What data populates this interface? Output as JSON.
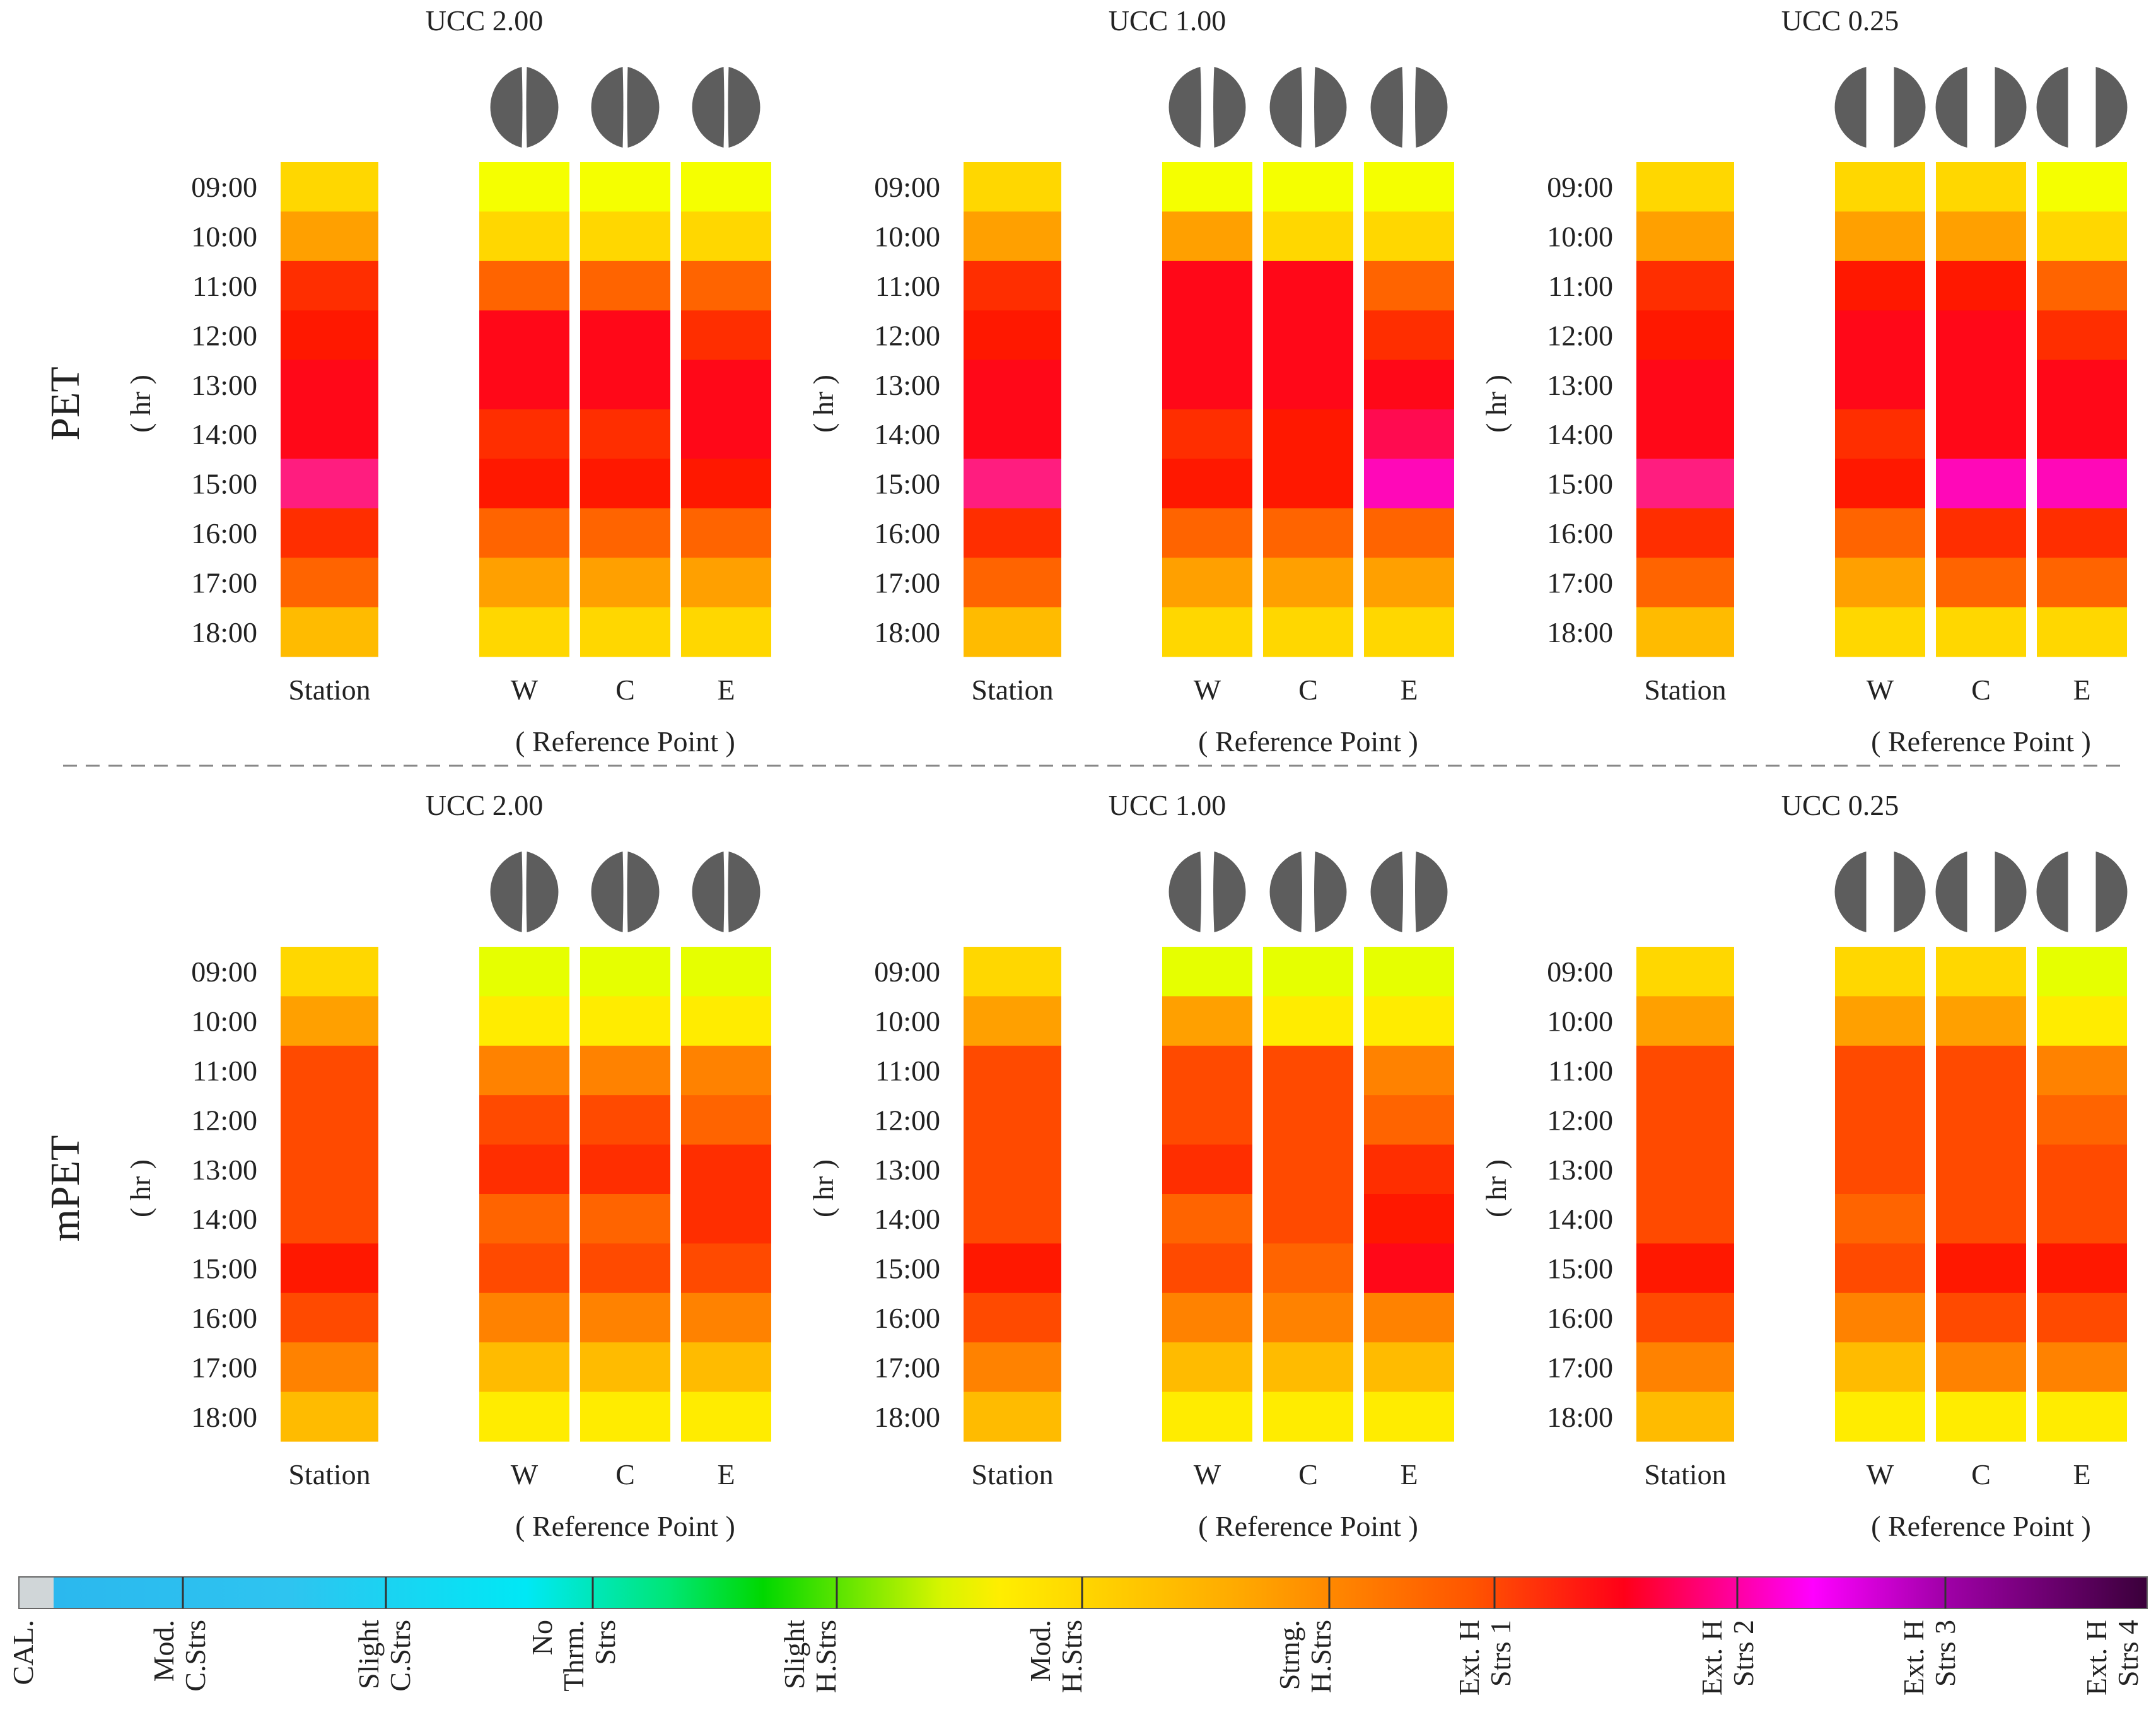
{
  "chart_data": {
    "type": "heatmap",
    "description_note": "",
    "time_labels": [
      "09:00",
      "10:00",
      "11:00",
      "12:00",
      "13:00",
      "14:00",
      "15:00",
      "16:00",
      "17:00",
      "18:00"
    ],
    "hour_axis_label": "( hr )",
    "station_label": "Station",
    "point_labels": [
      "W",
      "C",
      "E"
    ],
    "reference_label": "( Reference Point )",
    "levels": {
      "lvl0": "#e6ff00",
      "lvl1": "#f5ff00",
      "lvl2": "#ffec00",
      "lvl3": "#ffd700",
      "lvl4": "#ffbb00",
      "lvl5": "#ffa000",
      "lvl6": "#ff8200",
      "lvl7": "#ff6400",
      "lvl8": "#ff4a00",
      "lvl9": "#ff2e00",
      "lvl10": "#ff1800",
      "lvl11": "#ff0818",
      "lvl12": "#ff0b50",
      "lvl13": "#ff1d7f",
      "lvl14": "#ff08b8"
    },
    "rows": [
      {
        "index_label": "PET",
        "panels": [
          {
            "title": "UCC 2.00",
            "icon_shape": "thin",
            "columns": [
              {
                "name": "Station",
                "cells": [
                  3,
                  5,
                  9,
                  10,
                  11,
                  11,
                  13,
                  9,
                  7,
                  4
                ]
              },
              {
                "name": "W",
                "cells": [
                  1,
                  3,
                  7,
                  11,
                  11,
                  9,
                  10,
                  7,
                  5,
                  3
                ]
              },
              {
                "name": "C",
                "cells": [
                  1,
                  3,
                  7,
                  11,
                  11,
                  9,
                  10,
                  7,
                  5,
                  3
                ]
              },
              {
                "name": "E",
                "cells": [
                  1,
                  3,
                  7,
                  9,
                  11,
                  11,
                  10,
                  7,
                  5,
                  3
                ]
              }
            ]
          },
          {
            "title": "UCC 1.00",
            "icon_shape": "medium",
            "columns": [
              {
                "name": "Station",
                "cells": [
                  3,
                  5,
                  9,
                  10,
                  11,
                  11,
                  13,
                  9,
                  7,
                  4
                ]
              },
              {
                "name": "W",
                "cells": [
                  1,
                  5,
                  11,
                  11,
                  11,
                  9,
                  10,
                  7,
                  5,
                  3
                ]
              },
              {
                "name": "C",
                "cells": [
                  1,
                  3,
                  11,
                  11,
                  11,
                  10,
                  10,
                  7,
                  5,
                  3
                ]
              },
              {
                "name": "E",
                "cells": [
                  1,
                  3,
                  7,
                  9,
                  11,
                  12,
                  14,
                  7,
                  5,
                  3
                ]
              }
            ]
          },
          {
            "title": "UCC 0.25",
            "icon_shape": "wide",
            "columns": [
              {
                "name": "Station",
                "cells": [
                  3,
                  5,
                  9,
                  10,
                  11,
                  11,
                  13,
                  9,
                  7,
                  4
                ]
              },
              {
                "name": "W",
                "cells": [
                  3,
                  5,
                  10,
                  11,
                  11,
                  9,
                  10,
                  7,
                  5,
                  3
                ]
              },
              {
                "name": "C",
                "cells": [
                  3,
                  5,
                  10,
                  11,
                  11,
                  11,
                  14,
                  9,
                  7,
                  3
                ]
              },
              {
                "name": "E",
                "cells": [
                  1,
                  3,
                  7,
                  9,
                  11,
                  11,
                  14,
                  9,
                  7,
                  3
                ]
              }
            ]
          }
        ]
      },
      {
        "index_label": "mPET",
        "panels": [
          {
            "title": "UCC 2.00",
            "icon_shape": "thin",
            "columns": [
              {
                "name": "Station",
                "cells": [
                  3,
                  5,
                  8,
                  8,
                  8,
                  8,
                  10,
                  8,
                  6,
                  4
                ]
              },
              {
                "name": "W",
                "cells": [
                  0,
                  2,
                  6,
                  8,
                  9,
                  7,
                  8,
                  6,
                  4,
                  2
                ]
              },
              {
                "name": "C",
                "cells": [
                  0,
                  2,
                  6,
                  8,
                  9,
                  7,
                  8,
                  6,
                  4,
                  2
                ]
              },
              {
                "name": "E",
                "cells": [
                  0,
                  2,
                  6,
                  7,
                  9,
                  9,
                  8,
                  6,
                  4,
                  2
                ]
              }
            ]
          },
          {
            "title": "UCC 1.00",
            "icon_shape": "medium",
            "columns": [
              {
                "name": "Station",
                "cells": [
                  3,
                  5,
                  8,
                  8,
                  8,
                  8,
                  10,
                  8,
                  6,
                  4
                ]
              },
              {
                "name": "W",
                "cells": [
                  0,
                  5,
                  8,
                  8,
                  9,
                  7,
                  8,
                  6,
                  4,
                  2
                ]
              },
              {
                "name": "C",
                "cells": [
                  0,
                  2,
                  8,
                  8,
                  8,
                  8,
                  7,
                  6,
                  4,
                  2
                ]
              },
              {
                "name": "E",
                "cells": [
                  0,
                  2,
                  6,
                  7,
                  9,
                  10,
                  11,
                  6,
                  4,
                  2
                ]
              }
            ]
          },
          {
            "title": "UCC 0.25",
            "icon_shape": "wide",
            "columns": [
              {
                "name": "Station",
                "cells": [
                  3,
                  5,
                  8,
                  8,
                  8,
                  8,
                  10,
                  8,
                  6,
                  4
                ]
              },
              {
                "name": "W",
                "cells": [
                  3,
                  5,
                  8,
                  8,
                  8,
                  7,
                  8,
                  6,
                  4,
                  2
                ]
              },
              {
                "name": "C",
                "cells": [
                  3,
                  5,
                  8,
                  8,
                  8,
                  8,
                  10,
                  8,
                  6,
                  2
                ]
              },
              {
                "name": "E",
                "cells": [
                  0,
                  2,
                  6,
                  7,
                  8,
                  8,
                  10,
                  8,
                  6,
                  2
                ]
              }
            ]
          }
        ]
      }
    ],
    "colorbar": {
      "categories": [
        {
          "label": [
            "CAL."
          ],
          "color": "#d0d6d8"
        },
        {
          "label": [
            "Mod.",
            "C.Strs"
          ],
          "color": "#2ec0ee"
        },
        {
          "label": [
            "Slight",
            "C.Strs"
          ],
          "color": "#00e8f5"
        },
        {
          "label": [
            "No",
            "Thrm.",
            "Strs"
          ],
          "color": "#00dd00"
        },
        {
          "label": [
            "Slight",
            "H.Strs"
          ],
          "color": "#ffea00"
        },
        {
          "label": [
            "Mod.",
            "H.Strs"
          ],
          "color": "#ffaa00"
        },
        {
          "label": [
            "Strng.",
            "H.Strs"
          ],
          "color": "#ff5a00"
        },
        {
          "label": [
            "Ext. H",
            "Strs 1"
          ],
          "color": "#ff0000"
        },
        {
          "label": [
            "Ext. H",
            "Strs 2"
          ],
          "color": "#ff00ff"
        },
        {
          "label": [
            "Ext. H",
            "Strs 3"
          ],
          "color": "#99009f"
        },
        {
          "label": [
            "Ext. H",
            "Strs 4"
          ],
          "color": "#3a003a"
        }
      ]
    }
  }
}
